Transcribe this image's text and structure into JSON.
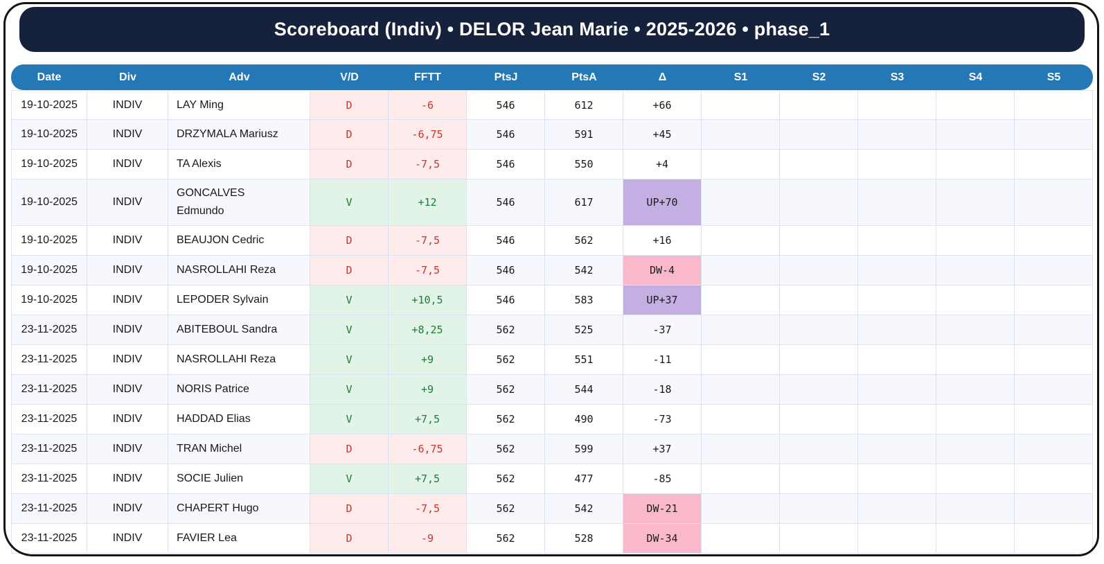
{
  "title_bar": {
    "title": "Scoreboard (Indiv) • DELOR Jean Marie • 2025-2026 • phase_1"
  },
  "colors": {
    "title_bar_bg": "#16223c",
    "header_bg": "#2478b5",
    "header_text": "#ffffff",
    "row_alt_bg": "#f6f8fd",
    "cell_border": "#dce3ef",
    "win_bg": "#e2f3e8",
    "win_text": "#1f7a33",
    "loss_bg": "#fdeceb",
    "loss_text": "#c5372e",
    "promotion_bg": "#c3afe2",
    "relegation_bg": "#fab9ca",
    "body_text": "#17181c",
    "frame_border": "#141414"
  },
  "table": {
    "columns": [
      {
        "key": "date",
        "label": "Date"
      },
      {
        "key": "div",
        "label": "Div"
      },
      {
        "key": "adv",
        "label": "Adv"
      },
      {
        "key": "vd",
        "label": "V/D"
      },
      {
        "key": "fftt",
        "label": "FFTT"
      },
      {
        "key": "ptsj",
        "label": "PtsJ"
      },
      {
        "key": "ptsa",
        "label": "PtsA"
      },
      {
        "key": "delta",
        "label": "Δ"
      },
      {
        "key": "s1",
        "label": "S1"
      },
      {
        "key": "s2",
        "label": "S2"
      },
      {
        "key": "s3",
        "label": "S3"
      },
      {
        "key": "s4",
        "label": "S4"
      },
      {
        "key": "s5",
        "label": "S5"
      }
    ],
    "rows": [
      {
        "date": "19-10-2025",
        "div": "INDIV",
        "adv": "LAY Ming",
        "vd": "D",
        "fftt": "-6",
        "ptsj": "546",
        "ptsa": "612",
        "delta": "+66",
        "s1": "",
        "s2": "",
        "s3": "",
        "s4": "",
        "s5": ""
      },
      {
        "date": "19-10-2025",
        "div": "INDIV",
        "adv": "DRZYMALA Mariusz",
        "vd": "D",
        "fftt": "-6,75",
        "ptsj": "546",
        "ptsa": "591",
        "delta": "+45",
        "s1": "",
        "s2": "",
        "s3": "",
        "s4": "",
        "s5": ""
      },
      {
        "date": "19-10-2025",
        "div": "INDIV",
        "adv": "TA Alexis",
        "vd": "D",
        "fftt": "-7,5",
        "ptsj": "546",
        "ptsa": "550",
        "delta": "+4",
        "s1": "",
        "s2": "",
        "s3": "",
        "s4": "",
        "s5": ""
      },
      {
        "date": "19-10-2025",
        "div": "INDIV",
        "adv": "GONCALVES Edmundo",
        "vd": "V",
        "fftt": "+12",
        "ptsj": "546",
        "ptsa": "617",
        "delta": "UP+70",
        "s1": "",
        "s2": "",
        "s3": "",
        "s4": "",
        "s5": ""
      },
      {
        "date": "19-10-2025",
        "div": "INDIV",
        "adv": "BEAUJON Cedric",
        "vd": "D",
        "fftt": "-7,5",
        "ptsj": "546",
        "ptsa": "562",
        "delta": "+16",
        "s1": "",
        "s2": "",
        "s3": "",
        "s4": "",
        "s5": ""
      },
      {
        "date": "19-10-2025",
        "div": "INDIV",
        "adv": "NASROLLAHI Reza",
        "vd": "D",
        "fftt": "-7,5",
        "ptsj": "546",
        "ptsa": "542",
        "delta": "DW-4",
        "s1": "",
        "s2": "",
        "s3": "",
        "s4": "",
        "s5": ""
      },
      {
        "date": "19-10-2025",
        "div": "INDIV",
        "adv": "LEPODER Sylvain",
        "vd": "V",
        "fftt": "+10,5",
        "ptsj": "546",
        "ptsa": "583",
        "delta": "UP+37",
        "s1": "",
        "s2": "",
        "s3": "",
        "s4": "",
        "s5": ""
      },
      {
        "date": "23-11-2025",
        "div": "INDIV",
        "adv": "ABITEBOUL Sandra",
        "vd": "V",
        "fftt": "+8,25",
        "ptsj": "562",
        "ptsa": "525",
        "delta": "-37",
        "s1": "",
        "s2": "",
        "s3": "",
        "s4": "",
        "s5": ""
      },
      {
        "date": "23-11-2025",
        "div": "INDIV",
        "adv": "NASROLLAHI Reza",
        "vd": "V",
        "fftt": "+9",
        "ptsj": "562",
        "ptsa": "551",
        "delta": "-11",
        "s1": "",
        "s2": "",
        "s3": "",
        "s4": "",
        "s5": ""
      },
      {
        "date": "23-11-2025",
        "div": "INDIV",
        "adv": "NORIS Patrice",
        "vd": "V",
        "fftt": "+9",
        "ptsj": "562",
        "ptsa": "544",
        "delta": "-18",
        "s1": "",
        "s2": "",
        "s3": "",
        "s4": "",
        "s5": ""
      },
      {
        "date": "23-11-2025",
        "div": "INDIV",
        "adv": "HADDAD Elias",
        "vd": "V",
        "fftt": "+7,5",
        "ptsj": "562",
        "ptsa": "490",
        "delta": "-73",
        "s1": "",
        "s2": "",
        "s3": "",
        "s4": "",
        "s5": ""
      },
      {
        "date": "23-11-2025",
        "div": "INDIV",
        "adv": "TRAN Michel",
        "vd": "D",
        "fftt": "-6,75",
        "ptsj": "562",
        "ptsa": "599",
        "delta": "+37",
        "s1": "",
        "s2": "",
        "s3": "",
        "s4": "",
        "s5": ""
      },
      {
        "date": "23-11-2025",
        "div": "INDIV",
        "adv": "SOCIE Julien",
        "vd": "V",
        "fftt": "+7,5",
        "ptsj": "562",
        "ptsa": "477",
        "delta": "-85",
        "s1": "",
        "s2": "",
        "s3": "",
        "s4": "",
        "s5": ""
      },
      {
        "date": "23-11-2025",
        "div": "INDIV",
        "adv": "CHAPERT Hugo",
        "vd": "D",
        "fftt": "-7,5",
        "ptsj": "562",
        "ptsa": "542",
        "delta": "DW-21",
        "s1": "",
        "s2": "",
        "s3": "",
        "s4": "",
        "s5": ""
      },
      {
        "date": "23-11-2025",
        "div": "INDIV",
        "adv": "FAVIER Lea",
        "vd": "D",
        "fftt": "-9",
        "ptsj": "562",
        "ptsa": "528",
        "delta": "DW-34",
        "s1": "",
        "s2": "",
        "s3": "",
        "s4": "",
        "s5": ""
      }
    ]
  }
}
